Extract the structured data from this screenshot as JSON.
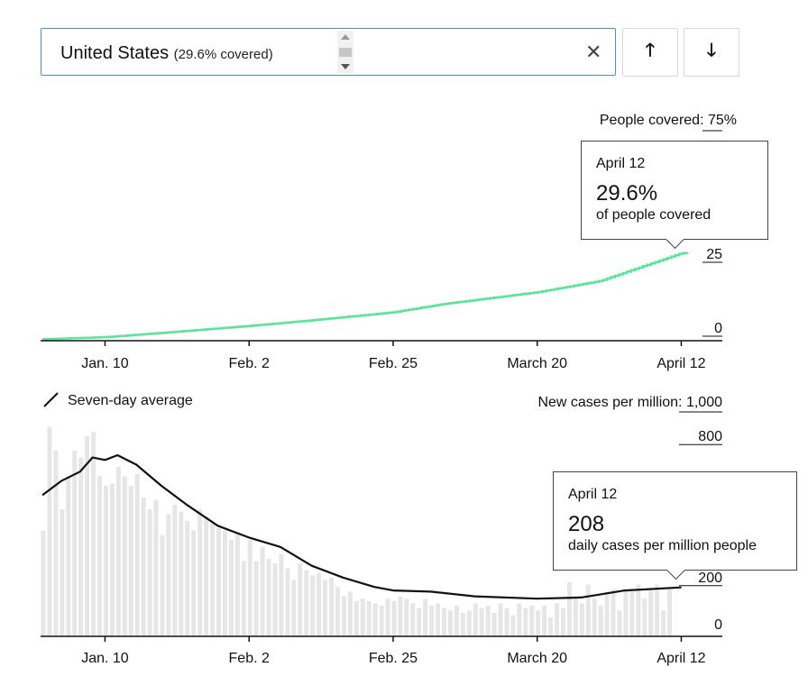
{
  "search": {
    "country": "United States",
    "covered_note": "(29.6% covered)",
    "clear_symbol": "✕"
  },
  "buttons": {
    "up_symbol": "🡑",
    "down_symbol": "🡓"
  },
  "colors": {
    "vaccine_line": "#5de39a",
    "bars": "#e6e6e6",
    "average_line": "#111111",
    "axis": "#111111"
  },
  "icons": {
    "clear": "close-icon",
    "up": "arrow-up-icon",
    "down": "arrow-down-icon",
    "legend": "diagonal-line-icon"
  },
  "chart_data": [
    {
      "type": "line",
      "topright_label": "People covered:",
      "topright_value": "75%",
      "x_tick_labels": [
        "Jan. 10",
        "Feb. 2",
        "Feb. 25",
        "March 20",
        "April 12"
      ],
      "y_tick_labels": [
        "25",
        "0"
      ],
      "ylim": [
        0,
        75
      ],
      "series": [
        {
          "x": [
            "Dec. 31",
            "Jan. 10",
            "Jan. 20",
            "Feb. 2",
            "Feb. 12",
            "Feb. 25",
            "March 5",
            "March 20",
            "March 30",
            "April 12",
            "April 13"
          ],
          "values": [
            0.5,
            1.2,
            2.8,
            5.0,
            6.9,
            9.6,
            12.4,
            16.4,
            20.2,
            29.6,
            29.8
          ]
        }
      ],
      "tooltip": {
        "date": "April 12",
        "value": "29.6%",
        "unit": "of people covered"
      }
    },
    {
      "type": "bar",
      "legend": "Seven-day average",
      "topright_label": "New cases per million:",
      "topright_value": "1,000",
      "x_tick_labels": [
        "Jan. 10",
        "Feb. 2",
        "Feb. 25",
        "March 20",
        "April 12"
      ],
      "y_tick_labels": [
        "800",
        "200",
        "0"
      ],
      "ylim": [
        0,
        1000
      ],
      "bars": [
        450,
        890,
        790,
        540,
        680,
        790,
        760,
        850,
        870,
        680,
        640,
        650,
        720,
        680,
        640,
        690,
        590,
        540,
        580,
        430,
        520,
        560,
        530,
        490,
        450,
        540,
        510,
        480,
        460,
        450,
        410,
        440,
        320,
        410,
        320,
        380,
        330,
        310,
        350,
        290,
        240,
        310,
        280,
        260,
        270,
        240,
        250,
        210,
        170,
        190,
        150,
        160,
        150,
        140,
        130,
        160,
        150,
        170,
        160,
        140,
        120,
        160,
        130,
        140,
        120,
        110,
        130,
        100,
        110,
        140,
        120,
        130,
        100,
        140,
        120,
        90,
        140,
        120,
        130,
        110,
        130,
        80,
        140,
        120,
        230,
        170,
        140,
        220,
        160,
        130,
        190,
        200,
        110,
        200,
        190,
        220,
        160,
        200,
        220,
        110,
        200
      ],
      "average_line": {
        "x": [
          "Dec. 31",
          "Jan. 3",
          "Jan. 6",
          "Jan. 8",
          "Jan. 10",
          "Jan. 12",
          "Jan. 15",
          "Jan. 19",
          "Jan. 23",
          "Jan. 28",
          "Feb. 2",
          "Feb. 7",
          "Feb. 12",
          "Feb. 17",
          "Feb. 22",
          "Feb. 25",
          "March 3",
          "March 10",
          "March 20",
          "March 27",
          "April 3",
          "April 12"
        ],
        "values": [
          600,
          660,
          700,
          760,
          750,
          770,
          730,
          640,
          560,
          470,
          420,
          380,
          300,
          250,
          210,
          195,
          190,
          170,
          160,
          165,
          195,
          208
        ]
      },
      "tooltip": {
        "date": "April 12",
        "value": "208",
        "unit": "daily cases per million people"
      }
    }
  ]
}
